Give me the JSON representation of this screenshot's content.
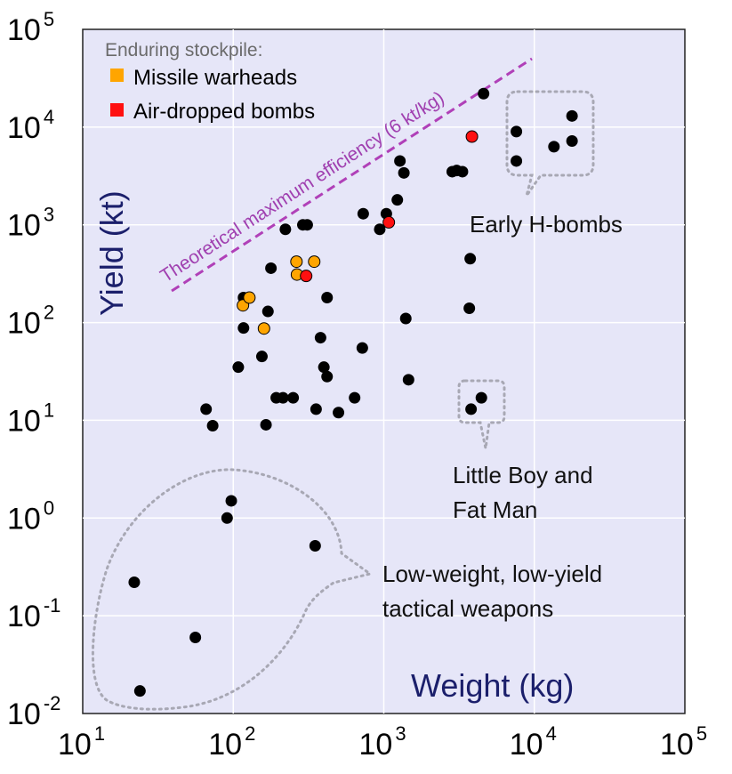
{
  "chart_data": {
    "type": "scatter",
    "xlabel": "Weight (kg)",
    "ylabel": "Yield (kt)",
    "x_scale": "log",
    "y_scale": "log",
    "xlim": [
      10,
      100000
    ],
    "ylim": [
      0.01,
      100000
    ],
    "x_ticks": [
      {
        "base": "10",
        "exp": "1"
      },
      {
        "base": "10",
        "exp": "2"
      },
      {
        "base": "10",
        "exp": "3"
      },
      {
        "base": "10",
        "exp": "4"
      },
      {
        "base": "10",
        "exp": "5"
      }
    ],
    "y_ticks": [
      {
        "base": "10",
        "exp": "-2"
      },
      {
        "base": "10",
        "exp": "-1"
      },
      {
        "base": "10",
        "exp": "0"
      },
      {
        "base": "10",
        "exp": "1"
      },
      {
        "base": "10",
        "exp": "2"
      },
      {
        "base": "10",
        "exp": "3"
      },
      {
        "base": "10",
        "exp": "4"
      },
      {
        "base": "10",
        "exp": "5"
      }
    ],
    "grid": true,
    "background_color": "#e6e6f8",
    "legend": {
      "title": "Enduring stockpile:",
      "position": "top-left",
      "entries": [
        {
          "label": "Missile warheads",
          "color": "#ffa500"
        },
        {
          "label": "Air-dropped bombs",
          "color": "#ff1010"
        }
      ]
    },
    "series": [
      {
        "color": "#000000",
        "points": [
          [
            24,
            0.017
          ],
          [
            56,
            0.06
          ],
          [
            22,
            0.22
          ],
          [
            91,
            1.0
          ],
          [
            97,
            1.5
          ],
          [
            350,
            0.52
          ],
          [
            66,
            13
          ],
          [
            73,
            8.8
          ],
          [
            108,
            35
          ],
          [
            117,
            88
          ],
          [
            117,
            180
          ],
          [
            155,
            45
          ],
          [
            165,
            9
          ],
          [
            170,
            130
          ],
          [
            178,
            360
          ],
          [
            193,
            17
          ],
          [
            214,
            17
          ],
          [
            250,
            17
          ],
          [
            222,
            900
          ],
          [
            290,
            1000
          ],
          [
            310,
            1000
          ],
          [
            355,
            13
          ],
          [
            380,
            70
          ],
          [
            400,
            35
          ],
          [
            420,
            180
          ],
          [
            420,
            28
          ],
          [
            500,
            12
          ],
          [
            640,
            17
          ],
          [
            720,
            55
          ],
          [
            730,
            1300
          ],
          [
            940,
            900
          ],
          [
            1040,
            1300
          ],
          [
            1230,
            1800
          ],
          [
            1280,
            4500
          ],
          [
            1360,
            3400
          ],
          [
            1400,
            110
          ],
          [
            1460,
            26
          ],
          [
            2850,
            3500
          ],
          [
            3050,
            3600
          ],
          [
            3330,
            3500
          ],
          [
            3750,
            450
          ],
          [
            3700,
            140
          ],
          [
            3800,
            13
          ],
          [
            4450,
            17
          ],
          [
            4600,
            22000
          ],
          [
            7600,
            9000
          ],
          [
            7600,
            4500
          ],
          [
            13500,
            6300
          ],
          [
            17800,
            13000
          ],
          [
            17800,
            7200
          ]
        ]
      },
      {
        "name": "Missile warheads",
        "color": "#ffa500",
        "points": [
          [
            116,
            150
          ],
          [
            128,
            180
          ],
          [
            160,
            87
          ],
          [
            263,
            420
          ],
          [
            265,
            310
          ],
          [
            345,
            420
          ]
        ]
      },
      {
        "name": "Air-dropped bombs",
        "color": "#ff1010",
        "points": [
          [
            305,
            300
          ],
          [
            1080,
            1060
          ],
          [
            3850,
            8000
          ]
        ]
      }
    ],
    "annotations": [
      {
        "name": "efficiency",
        "text": "Theoretical maximum efficiency (6 kt/kg)"
      },
      {
        "name": "hbombs",
        "lines": [
          "Early H-bombs"
        ]
      },
      {
        "name": "lbfm",
        "lines": [
          "Little Boy and",
          "Fat Man"
        ]
      },
      {
        "name": "tactical",
        "lines": [
          "Low-weight, low-yield",
          "tactical weapons"
        ]
      }
    ]
  }
}
